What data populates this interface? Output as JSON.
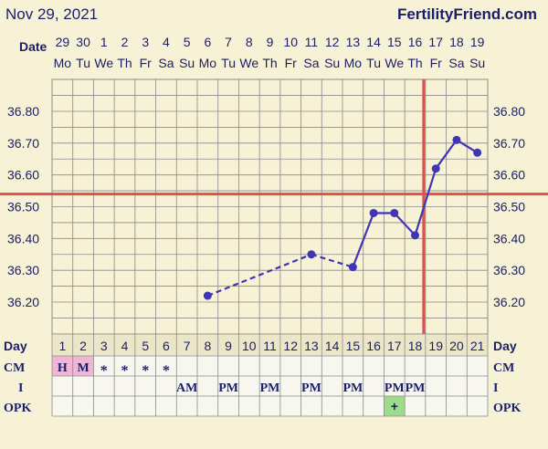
{
  "header": {
    "date": "Nov 29, 2021",
    "site": "FertilityFriend.com"
  },
  "colors": {
    "background": "#f7f1d6",
    "grid": "#8a8a8a",
    "line": "#3f35b5",
    "coverline": "#d9534f",
    "cm_fill": "#f1b6d3",
    "opk_positive_fill": "#9ddc8d",
    "text": "#1a1f66"
  },
  "chart_data": {
    "type": "line",
    "x_row_label": "Date",
    "dates": [
      "29",
      "30",
      "1",
      "2",
      "3",
      "4",
      "5",
      "6",
      "7",
      "8",
      "9",
      "10",
      "11",
      "12",
      "13",
      "14",
      "15",
      "16",
      "17",
      "18",
      "19"
    ],
    "weekdays": [
      "Mo",
      "Tu",
      "We",
      "Th",
      "Fr",
      "Sa",
      "Su",
      "Mo",
      "Tu",
      "We",
      "Th",
      "Fr",
      "Sa",
      "Su",
      "Mo",
      "Tu",
      "We",
      "Th",
      "Fr",
      "Sa",
      "Su"
    ],
    "cycle_day_label": "Day",
    "cycle_days": [
      "1",
      "2",
      "3",
      "4",
      "5",
      "6",
      "7",
      "8",
      "9",
      "10",
      "11",
      "12",
      "13",
      "14",
      "15",
      "16",
      "17",
      "18",
      "19",
      "20",
      "21"
    ],
    "y_ticks": [
      "36.20",
      "36.30",
      "36.40",
      "36.50",
      "36.60",
      "36.70",
      "36.80"
    ],
    "ylim": [
      36.14,
      36.9
    ],
    "series": [
      {
        "points": [
          {
            "day": 8,
            "y": 36.22
          },
          {
            "day": 13,
            "y": 36.35
          },
          {
            "day": 15,
            "y": 36.31
          },
          {
            "day": 16,
            "y": 36.48
          },
          {
            "day": 17,
            "y": 36.48
          },
          {
            "day": 18,
            "y": 36.41
          },
          {
            "day": 19,
            "y": 36.62
          },
          {
            "day": 20,
            "y": 36.71
          },
          {
            "day": 21,
            "y": 36.67
          }
        ],
        "dashed_through_day": 15
      }
    ],
    "coverline": 36.54,
    "ovulation_day": 18
  },
  "rows": {
    "cm": {
      "label": "CM",
      "cells": [
        "H",
        "M",
        "*",
        "*",
        "*",
        "*",
        "",
        "",
        "",
        "",
        "",
        "",
        "",
        "",
        "",
        "",
        "",
        "",
        "",
        "",
        ""
      ]
    },
    "intercourse": {
      "label": "I",
      "cells": [
        "",
        "",
        "",
        "",
        "",
        "",
        "AM",
        "",
        "PM",
        "",
        "PM",
        "",
        "PM",
        "",
        "PM",
        "",
        "PM",
        "PM",
        "",
        "",
        ""
      ]
    },
    "opk": {
      "label": "OPK",
      "cells": [
        "",
        "",
        "",
        "",
        "",
        "",
        "",
        "",
        "",
        "",
        "",
        "",
        "",
        "",
        "",
        "",
        "+",
        "",
        "",
        "",
        ""
      ]
    }
  }
}
